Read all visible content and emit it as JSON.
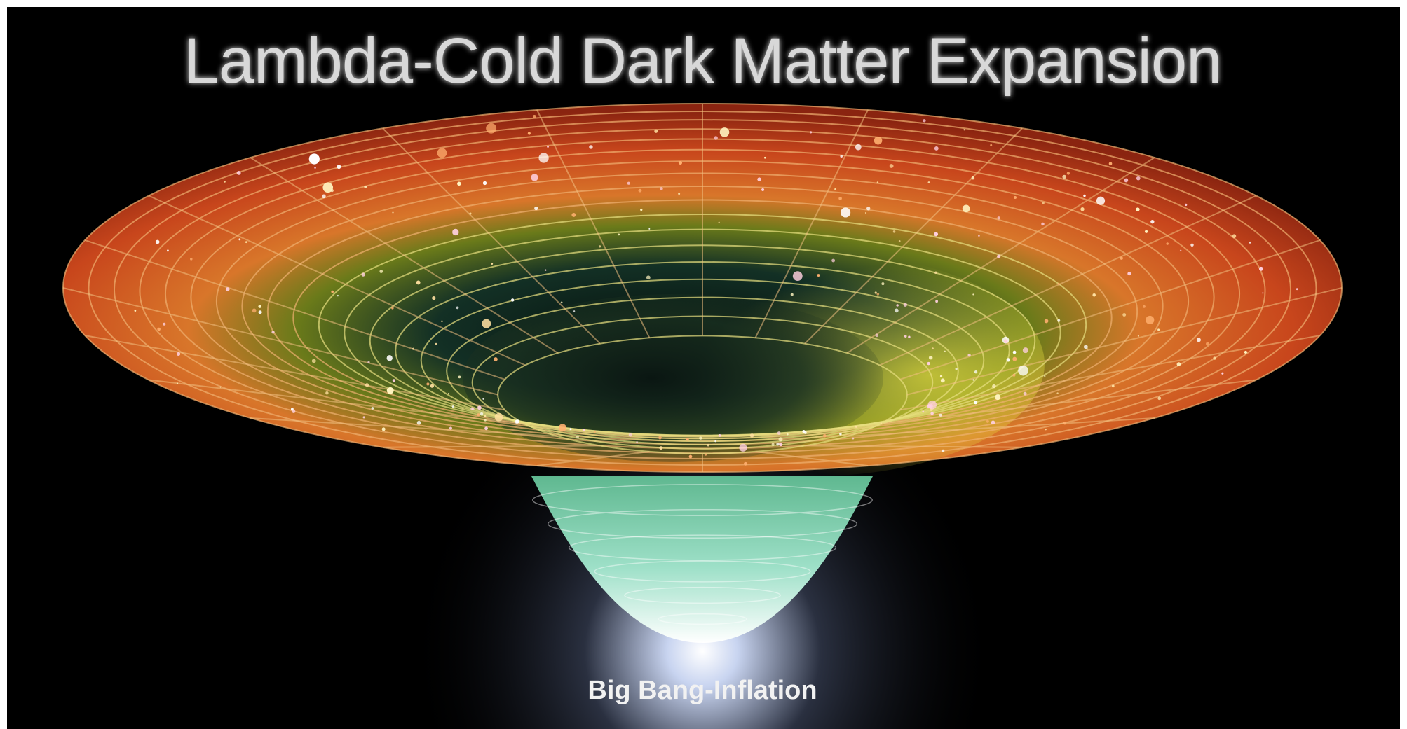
{
  "title": "Lambda-Cold Dark Matter Expansion",
  "label": "Big Bang-Inflation"
}
